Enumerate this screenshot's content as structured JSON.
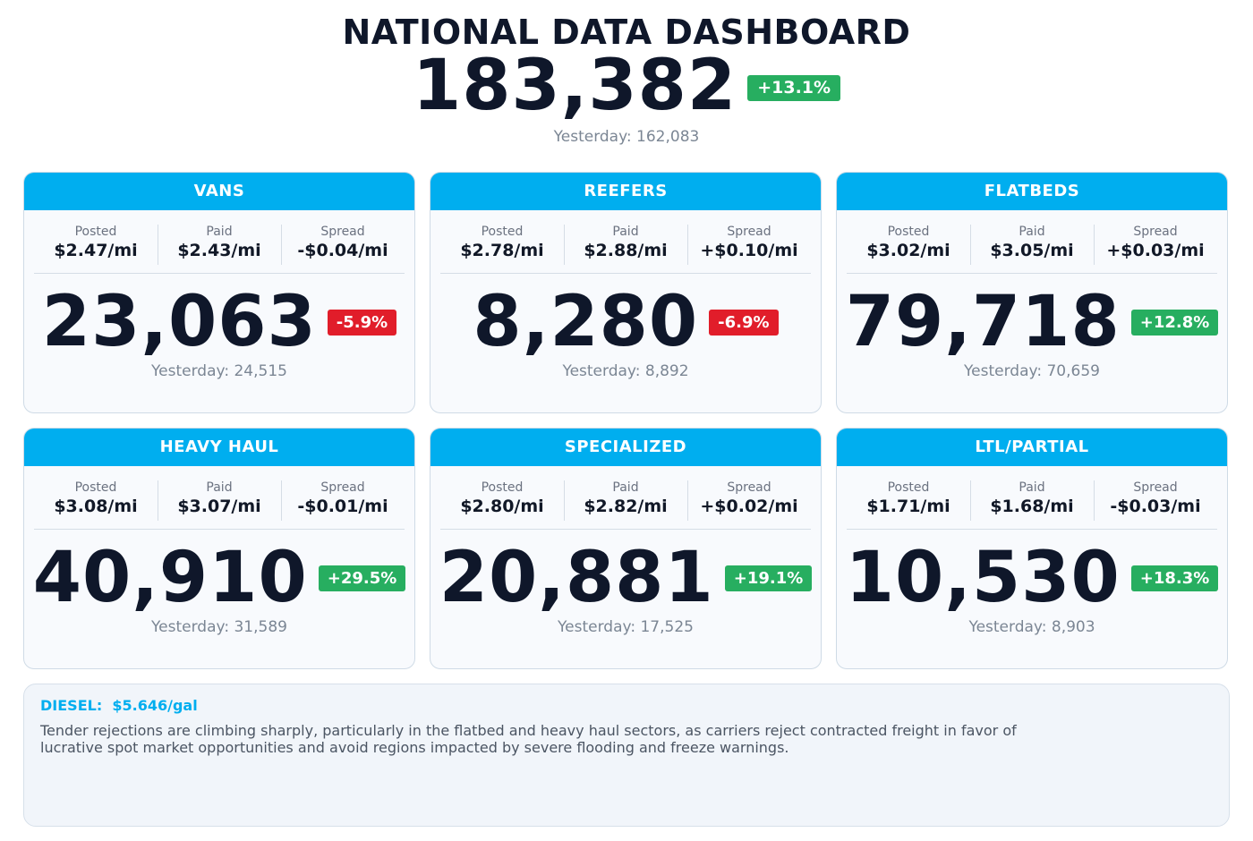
{
  "header": {
    "title": "NATIONAL DATA DASHBOARD",
    "total": "183,382",
    "total_change": "+13.1%",
    "total_change_direction": "up",
    "total_yesterday": "Yesterday: 162,083"
  },
  "colors": {
    "accent": "#00aeef",
    "positive": "#27ae60",
    "negative": "#e11d2a",
    "text_dark": "#0f172a",
    "text_muted": "#7b8694"
  },
  "metric_labels": {
    "posted": "Posted",
    "paid": "Paid",
    "spread": "Spread"
  },
  "cards": [
    {
      "title": "VANS",
      "posted": "$2.47/mi",
      "paid": "$2.43/mi",
      "spread": "-$0.04/mi",
      "value": "23,063",
      "change": "-5.9%",
      "direction": "down",
      "yesterday": "Yesterday: 24,515"
    },
    {
      "title": "REEFERS",
      "posted": "$2.78/mi",
      "paid": "$2.88/mi",
      "spread": "+$0.10/mi",
      "value": "8,280",
      "change": "-6.9%",
      "direction": "down",
      "yesterday": "Yesterday: 8,892"
    },
    {
      "title": "FLATBEDS",
      "posted": "$3.02/mi",
      "paid": "$3.05/mi",
      "spread": "+$0.03/mi",
      "value": "79,718",
      "change": "+12.8%",
      "direction": "up",
      "yesterday": "Yesterday: 70,659"
    },
    {
      "title": "HEAVY HAUL",
      "posted": "$3.08/mi",
      "paid": "$3.07/mi",
      "spread": "-$0.01/mi",
      "value": "40,910",
      "change": "+29.5%",
      "direction": "up",
      "yesterday": "Yesterday: 31,589"
    },
    {
      "title": "SPECIALIZED",
      "posted": "$2.80/mi",
      "paid": "$2.82/mi",
      "spread": "+$0.02/mi",
      "value": "20,881",
      "change": "+19.1%",
      "direction": "up",
      "yesterday": "Yesterday: 17,525"
    },
    {
      "title": "LTL/PARTIAL",
      "posted": "$1.71/mi",
      "paid": "$1.68/mi",
      "spread": "-$0.03/mi",
      "value": "10,530",
      "change": "+18.3%",
      "direction": "up",
      "yesterday": "Yesterday: 8,903"
    }
  ],
  "footer": {
    "diesel": "DIESEL:  $5.646/gal",
    "summary": "Tender rejections are climbing sharply, particularly in the flatbed and heavy haul sectors, as carriers reject contracted freight in favor of lucrative spot market opportunities and avoid regions impacted by severe flooding and freeze warnings."
  }
}
